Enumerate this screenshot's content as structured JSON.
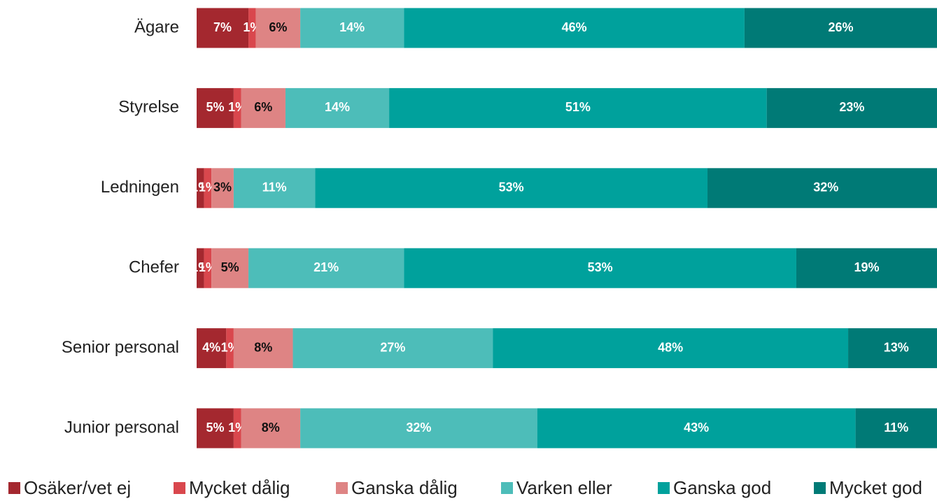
{
  "chart_data": {
    "type": "stacked_bar_horizontal",
    "categories": [
      "Ägare",
      "Styrelse",
      "Ledningen",
      "Chefer",
      "Senior personal",
      "Junior personal"
    ],
    "xlim": [
      0,
      100
    ],
    "series": [
      {
        "name": "Osäker/vet ej",
        "color": "#a4282f",
        "values": [
          7,
          5,
          1,
          1,
          4,
          5
        ],
        "value_labels": [
          "7%",
          "5%",
          "1%",
          "1%",
          "4%",
          "5%"
        ]
      },
      {
        "name": "Mycket dålig",
        "color": "#d9474d",
        "values": [
          1,
          1,
          1,
          1,
          1,
          1
        ],
        "value_labels": [
          "1%",
          "1%",
          "1%",
          "1%",
          "1%",
          "1%"
        ]
      },
      {
        "name": "Ganska dålig",
        "color": "#de8484",
        "values": [
          6,
          6,
          3,
          5,
          8,
          8
        ],
        "value_labels": [
          "6%",
          "6%",
          "3%",
          "5%",
          "8%",
          "8%"
        ]
      },
      {
        "name": "Varken eller",
        "color": "#4dbdb9",
        "values": [
          14,
          14,
          11,
          21,
          27,
          32
        ],
        "value_labels": [
          "14%",
          "14%",
          "11%",
          "21%",
          "27%",
          "32%"
        ]
      },
      {
        "name": "Ganska god",
        "color": "#00a19c",
        "values": [
          46,
          51,
          53,
          53,
          48,
          43
        ],
        "value_labels": [
          "46%",
          "51%",
          "53%",
          "53%",
          "48%",
          "43%"
        ]
      },
      {
        "name": "Mycket god",
        "color": "#007a76",
        "values": [
          26,
          23,
          32,
          19,
          13,
          11
        ],
        "value_labels": [
          "26%",
          "23%",
          "32%",
          "19%",
          "13%",
          "11%"
        ]
      }
    ]
  }
}
